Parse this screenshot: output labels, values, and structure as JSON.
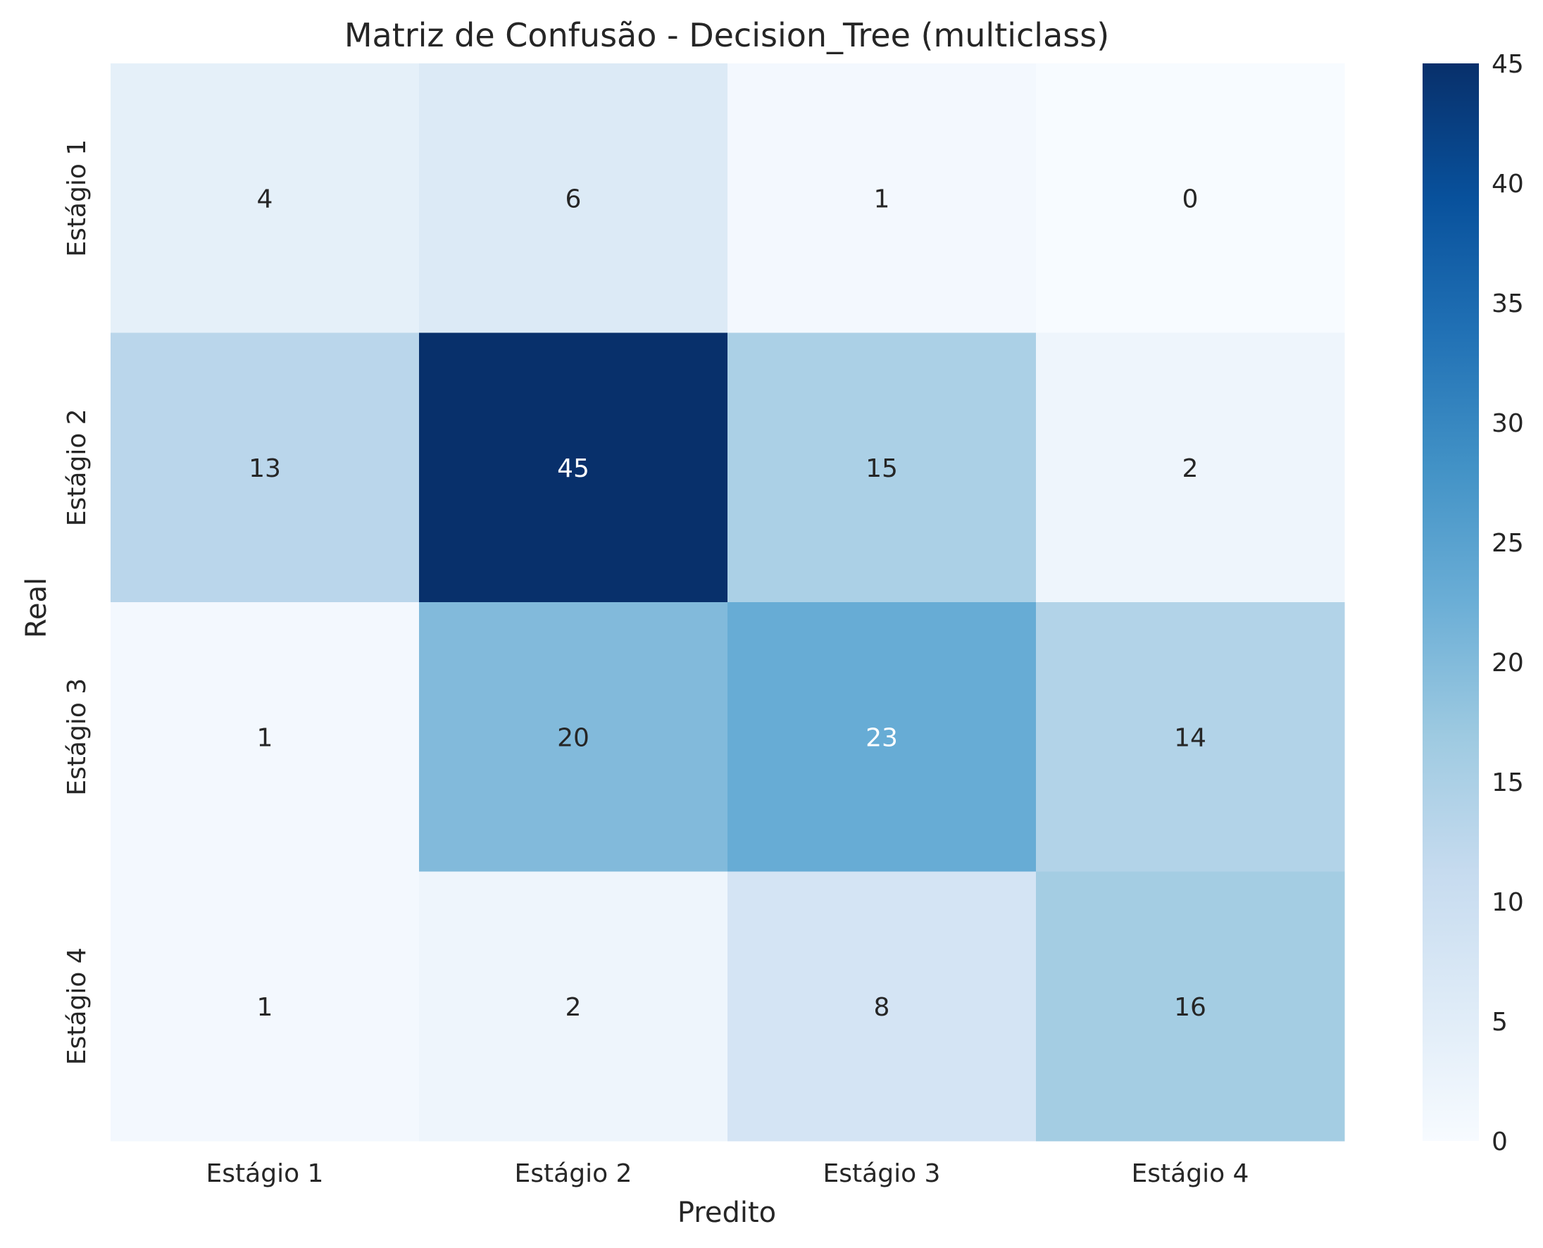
{
  "chart_data": {
    "type": "heatmap",
    "title": "Matriz de Confusão - Decision_Tree (multiclass)",
    "xlabel": "Predito",
    "ylabel": "Real",
    "x_categories": [
      "Estágio 1",
      "Estágio 2",
      "Estágio 3",
      "Estágio 4"
    ],
    "y_categories": [
      "Estágio 1",
      "Estágio 2",
      "Estágio 3",
      "Estágio 4"
    ],
    "matrix": [
      [
        4,
        6,
        1,
        0
      ],
      [
        13,
        45,
        15,
        2
      ],
      [
        1,
        20,
        23,
        14
      ],
      [
        1,
        2,
        8,
        16
      ]
    ],
    "colormap": "Blues",
    "color_range": [
      0,
      45
    ],
    "colorbar_ticks": [
      0,
      5,
      10,
      15,
      20,
      25,
      30,
      35,
      40,
      45
    ],
    "grid": false
  }
}
